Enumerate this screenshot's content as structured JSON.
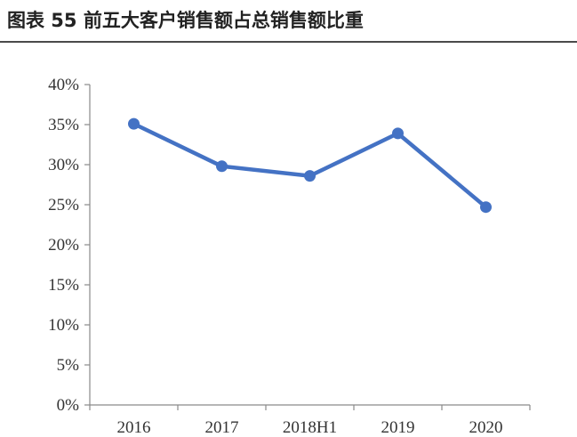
{
  "figure_title": "图表 55 前五大客户销售额占总销售额比重",
  "chart_data": {
    "type": "line",
    "categories": [
      "2016",
      "2017",
      "2018H1",
      "2019",
      "2020"
    ],
    "series": [
      {
        "values": [
          35.1,
          29.8,
          28.6,
          33.9,
          24.7
        ]
      }
    ],
    "ylim": [
      0,
      40
    ],
    "yticks": [
      0,
      5,
      10,
      15,
      20,
      25,
      30,
      35,
      40
    ],
    "ytick_labels": [
      "0%",
      "5%",
      "10%",
      "15%",
      "20%",
      "25%",
      "30%",
      "35%",
      "40%"
    ],
    "y_unit": "%",
    "grid": false,
    "legend": "none",
    "line_color": "#4472C4"
  }
}
